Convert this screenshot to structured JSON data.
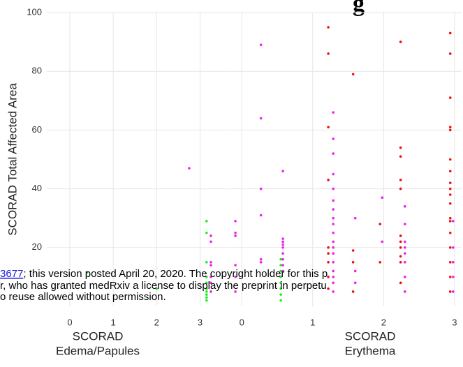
{
  "title_fragment": "g",
  "chart_data": [
    {
      "type": "scatter",
      "ylabel": "SCORAD Total Affected Area",
      "xlabel": [
        "SCORAD",
        "Edema/Papules"
      ],
      "xlim": [
        -0.53,
        3.7
      ],
      "ylim": [
        0,
        100
      ],
      "xticks": [
        0,
        1,
        2,
        3
      ],
      "yticks": [
        20,
        40,
        60,
        80,
        100
      ],
      "grid": true,
      "series": [
        {
          "color": "#22ee22",
          "x": [
            3.15,
            3.15,
            3.15,
            3.15,
            3.15,
            3.15,
            3.15,
            3.15,
            3.15,
            3.15,
            0.4,
            2.0
          ],
          "values": [
            29,
            25,
            15,
            10,
            8,
            6,
            5,
            4,
            3,
            2,
            11.6,
            6
          ]
        },
        {
          "color": "#ee22ee",
          "x": [
            3.25,
            3.25,
            3.25,
            3.25,
            3.25,
            3.25,
            3.25,
            2.75
          ],
          "values": [
            24,
            22,
            15,
            14,
            10,
            8,
            5,
            47
          ]
        }
      ]
    },
    {
      "type": "scatter",
      "xlabel": [
        "SCORAD",
        "Erythema"
      ],
      "xlim": [
        -0.15,
        3.1
      ],
      "ylim": [
        0,
        100
      ],
      "xticks": [
        0,
        1,
        2,
        3
      ],
      "yticks": [
        20,
        40,
        60,
        80,
        100
      ],
      "grid": true,
      "series": [
        {
          "color": "#22ee22",
          "x": [
            0.55,
            0.55,
            0.55,
            0.55,
            0.55,
            0.55,
            0.55,
            0.55
          ],
          "values": [
            16,
            14,
            12,
            10,
            8,
            6,
            4,
            2
          ]
        },
        {
          "color": "#ee22ee",
          "x": [
            -0.09,
            -0.09,
            -0.09,
            -0.09,
            -0.09,
            -0.09,
            0.27,
            0.27,
            0.27,
            0.27,
            0.27,
            0.27,
            0.58,
            0.58,
            0.58,
            0.58,
            0.58,
            0.58,
            0.58,
            0.58,
            0.58,
            1.29,
            1.29,
            1.29,
            1.29,
            1.29,
            1.29,
            1.29,
            1.29,
            1.29,
            1.29,
            1.29,
            1.29,
            1.29,
            1.29,
            1.29,
            1.29,
            1.29,
            1.29,
            1.6,
            1.6,
            1.6,
            1.98,
            1.98,
            2.3,
            2.3,
            2.3,
            2.3,
            2.3,
            2.3,
            2.3,
            2.3,
            2.98,
            2.98,
            2.98,
            2.98,
            2.98
          ],
          "values": [
            29,
            25,
            24,
            14,
            10,
            5,
            89,
            64,
            40,
            31,
            16,
            15,
            46,
            23,
            22,
            21,
            20,
            18,
            16,
            14,
            12,
            66,
            57,
            52,
            45,
            40,
            36,
            33,
            30,
            28,
            25,
            22,
            20,
            18,
            15,
            12,
            10,
            8,
            5,
            30,
            12,
            8,
            37,
            22,
            34,
            28,
            22,
            20,
            18,
            15,
            10,
            5,
            29,
            20,
            15,
            10,
            5
          ]
        },
        {
          "color": "#ee1111",
          "x": [
            1.22,
            1.22,
            1.22,
            1.22,
            1.22,
            1.22,
            1.22,
            1.22,
            1.22,
            1.57,
            1.57,
            1.57,
            1.57,
            1.95,
            1.95,
            2.24,
            2.24,
            2.24,
            2.24,
            2.24,
            2.24,
            2.24,
            2.24,
            2.24,
            2.24,
            2.24,
            2.94,
            2.94,
            2.94,
            2.94,
            2.94,
            2.94,
            2.94,
            2.94,
            2.94,
            2.94,
            2.94,
            2.94,
            2.94,
            2.94,
            2.94,
            2.94,
            2.94,
            2.94
          ],
          "values": [
            95,
            86,
            61,
            43,
            20,
            18,
            15,
            10,
            6,
            79,
            19,
            15,
            5,
            28,
            15,
            90,
            54,
            51,
            43,
            40,
            24,
            22,
            20,
            17,
            15,
            8,
            93,
            86,
            71,
            61,
            60,
            50,
            46,
            42,
            40,
            38,
            35,
            30,
            29,
            25,
            20,
            15,
            10,
            5
          ]
        }
      ]
    }
  ],
  "watermark": {
    "link": "3677",
    "line1": "; this version posted April 20, 2020. The copyright holder for this p",
    "line2": "r, who has granted medRxiv a license to display the preprint in perpetu",
    "line3": "o reuse allowed without permission."
  }
}
